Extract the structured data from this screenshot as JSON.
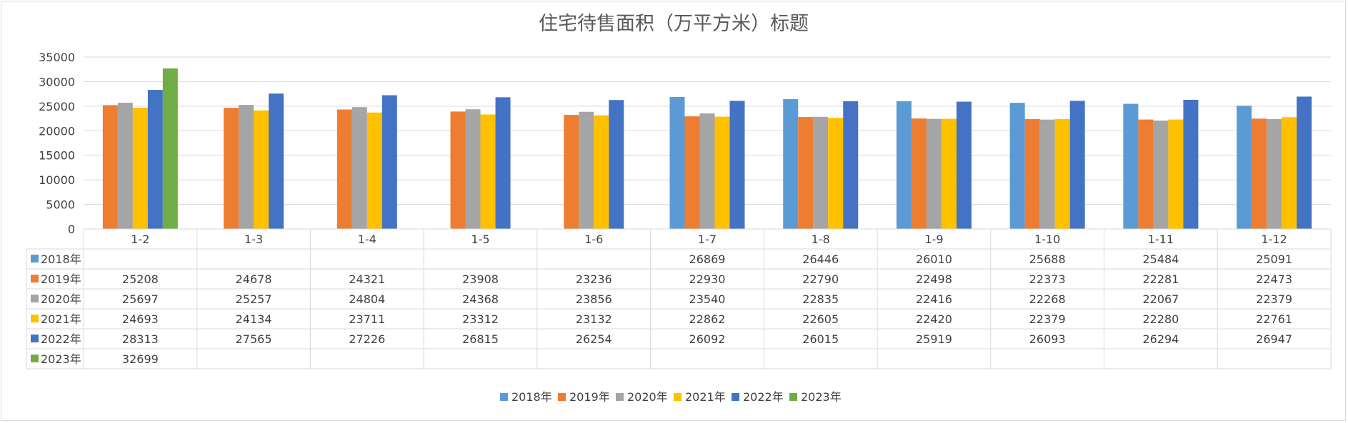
{
  "chart_data": {
    "type": "bar",
    "title": "住宅待售面积（万平方米）标题",
    "categories": [
      "1-2",
      "1-3",
      "1-4",
      "1-5",
      "1-6",
      "1-7",
      "1-8",
      "1-9",
      "1-10",
      "1-11",
      "1-12"
    ],
    "series": [
      {
        "name": "2018年",
        "color": "#5b9bd5",
        "values": [
          null,
          null,
          null,
          null,
          null,
          26869,
          26446,
          26010,
          25688,
          25484,
          25091
        ]
      },
      {
        "name": "2019年",
        "color": "#ed7d31",
        "values": [
          25208,
          24678,
          24321,
          23908,
          23236,
          22930,
          22790,
          22498,
          22373,
          22281,
          22473
        ]
      },
      {
        "name": "2020年",
        "color": "#a5a5a5",
        "values": [
          25697,
          25257,
          24804,
          24368,
          23856,
          23540,
          22835,
          22416,
          22268,
          22067,
          22379
        ]
      },
      {
        "name": "2021年",
        "color": "#ffc000",
        "values": [
          24693,
          24134,
          23711,
          23312,
          23132,
          22862,
          22605,
          22420,
          22379,
          22280,
          22761
        ]
      },
      {
        "name": "2022年",
        "color": "#4472c4",
        "values": [
          28313,
          27565,
          27226,
          26815,
          26254,
          26092,
          26015,
          25919,
          26093,
          26294,
          26947
        ]
      },
      {
        "name": "2023年",
        "color": "#70ad47",
        "values": [
          32699,
          null,
          null,
          null,
          null,
          null,
          null,
          null,
          null,
          null,
          null
        ]
      }
    ],
    "y_ticks": [
      0,
      5000,
      10000,
      15000,
      20000,
      25000,
      30000,
      35000
    ],
    "ylim": [
      0,
      35000
    ],
    "grid": true,
    "legend": "bottom",
    "data_table": true
  }
}
